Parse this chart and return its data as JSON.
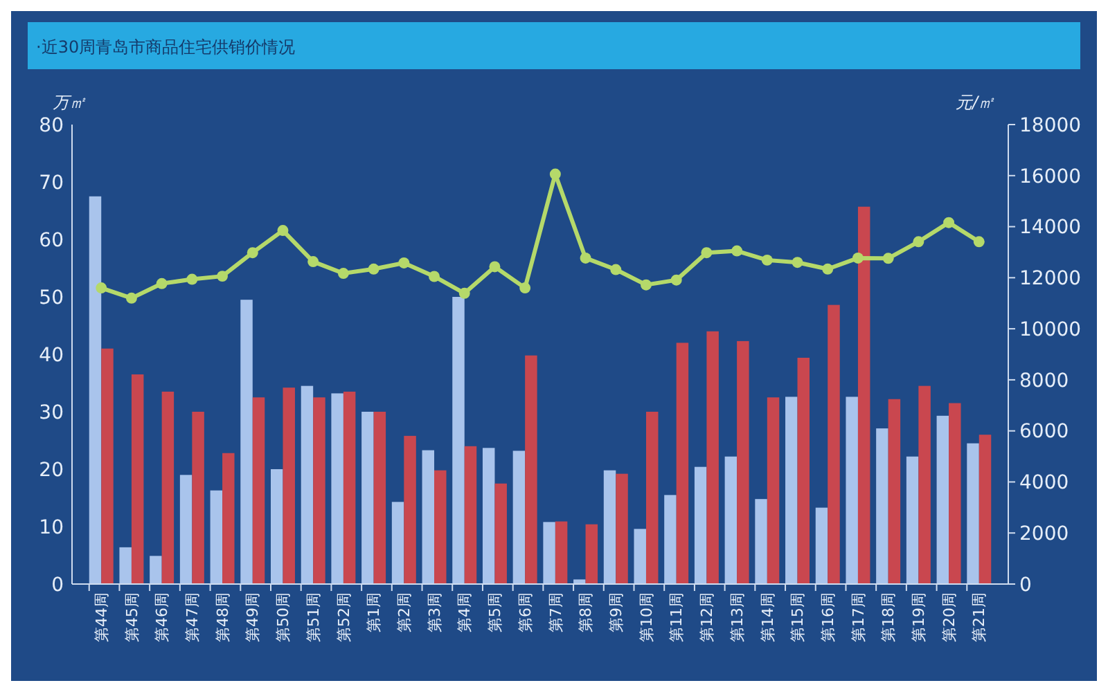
{
  "chart_data": {
    "type": "bar",
    "title": "·近30周青岛市商品住宅供销价情况",
    "ylabel": "万㎡",
    "y2label": "元/㎡",
    "categories": [
      "第44周",
      "第45周",
      "第46周",
      "第47周",
      "第48周",
      "第49周",
      "第50周",
      "第51周",
      "第52周",
      "第1周",
      "第2周",
      "第3周",
      "第4周",
      "第5周",
      "第6周",
      "第7周",
      "第8周",
      "第9周",
      "第10周",
      "第11周",
      "第12周",
      "第13周",
      "第14周",
      "第15周",
      "第16周",
      "第17周",
      "第18周",
      "第19周",
      "第20周",
      "第21周"
    ],
    "series": [
      {
        "color": "#a9c4ec",
        "values": [
          67.5,
          6.4,
          4.9,
          19,
          16.3,
          49.5,
          20,
          34.5,
          33.2,
          30,
          14.3,
          23.3,
          50,
          23.7,
          23.2,
          10.8,
          0.8,
          19.8,
          9.6,
          15.5,
          20.4,
          22.2,
          14.8,
          32.6,
          13.3,
          32.6,
          27.1,
          22.2,
          29.3,
          24.5
        ]
      },
      {
        "color": "#c9474f",
        "values": [
          41,
          36.5,
          33.5,
          30,
          22.8,
          32.5,
          34.2,
          32.5,
          33.5,
          30,
          25.8,
          19.8,
          24,
          17.5,
          39.8,
          10.9,
          10.4,
          19.2,
          30,
          42,
          44,
          42.3,
          32.5,
          39.4,
          48.6,
          65.7,
          32.2,
          34.5,
          31.5,
          26
        ]
      },
      {
        "type": "line",
        "axis": "y2",
        "color": "#b5d96a",
        "values": [
          11600,
          11200,
          11770,
          11940,
          12060,
          12980,
          13850,
          12630,
          12170,
          12340,
          12580,
          12050,
          11390,
          12430,
          11600,
          16060,
          12770,
          12320,
          11720,
          11910,
          12980,
          13050,
          12690,
          12600,
          12340,
          12770,
          12760,
          13410,
          14160,
          13410
        ]
      }
    ],
    "ylim": [
      0,
      80
    ],
    "yticks": [
      0,
      10,
      20,
      30,
      40,
      50,
      60,
      70,
      80
    ],
    "y2lim": [
      0,
      18000
    ],
    "y2ticks": [
      0,
      2000,
      4000,
      6000,
      8000,
      10000,
      12000,
      14000,
      16000,
      18000
    ],
    "grid": false,
    "marker": "circle",
    "line_style": "solid"
  }
}
